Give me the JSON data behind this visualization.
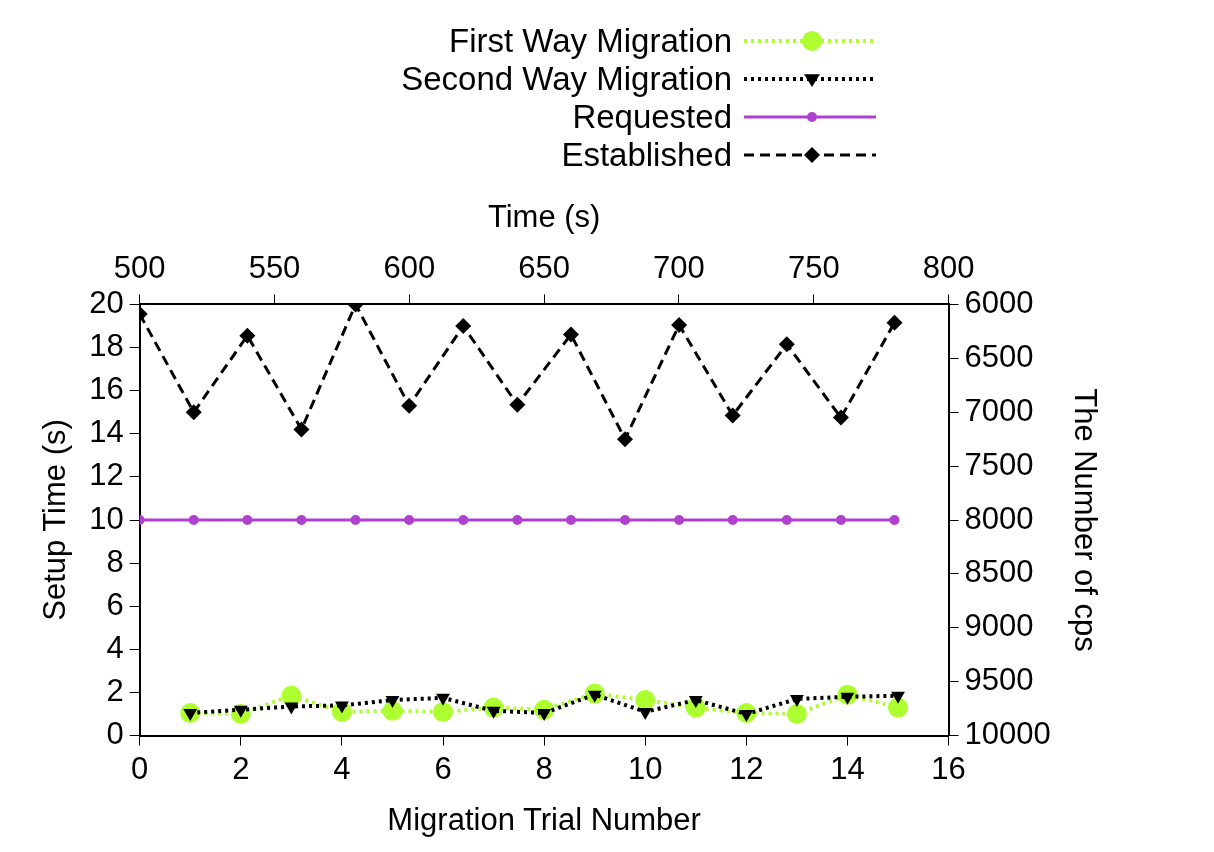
{
  "chart_data": {
    "type": "line",
    "xlabel": "Migration Trial Number",
    "x2label": "Time (s)",
    "ylabel": "Setup Time (s)",
    "y2label": "The Number of cps",
    "xlim": [
      0,
      16
    ],
    "xticks": [
      0,
      2,
      4,
      6,
      8,
      10,
      12,
      14,
      16
    ],
    "x2lim": [
      500,
      800
    ],
    "x2ticks": [
      500,
      550,
      600,
      650,
      700,
      750,
      800
    ],
    "ylim": [
      0,
      20
    ],
    "yticks": [
      0,
      2,
      4,
      6,
      8,
      10,
      12,
      14,
      16,
      18,
      20
    ],
    "y2lim": [
      10000,
      6000
    ],
    "y2ticks": [
      6000,
      6500,
      7000,
      7500,
      8000,
      8500,
      9000,
      9500,
      10000
    ],
    "legend": "top",
    "grid": false,
    "series": [
      {
        "name": "First Way Migration",
        "color": "#adff2f",
        "marker": "circle",
        "line_style": "dotted",
        "x": [
          1,
          2,
          3,
          4,
          5,
          6,
          7,
          8,
          9,
          10,
          11,
          12,
          13,
          14,
          15
        ],
        "values": [
          1.05,
          1.0,
          1.85,
          1.1,
          1.15,
          1.1,
          1.3,
          1.2,
          1.95,
          1.65,
          1.3,
          1.05,
          1.0,
          1.9,
          1.3
        ]
      },
      {
        "name": "Second Way Migration",
        "color": "#000000",
        "marker": "triangle",
        "line_style": "dotted",
        "x": [
          1,
          2,
          3,
          4,
          5,
          6,
          7,
          8,
          9,
          10,
          11,
          12,
          13,
          14,
          15
        ],
        "values": [
          1.05,
          1.2,
          1.35,
          1.4,
          1.65,
          1.75,
          1.15,
          1.05,
          1.9,
          1.1,
          1.65,
          1.0,
          1.7,
          1.8,
          1.85
        ]
      },
      {
        "name": "Requested",
        "color": "#b040d0",
        "marker": "circle",
        "line_style": "solid",
        "axis": "y2",
        "x": [
          0,
          1.07,
          2.13,
          3.2,
          4.27,
          5.33,
          6.4,
          7.47,
          8.53,
          9.6,
          10.67,
          11.73,
          12.8,
          13.87,
          14.93
        ],
        "values": [
          8000,
          8000,
          8000,
          8000,
          8000,
          8000,
          8000,
          8000,
          8000,
          8000,
          8000,
          8000,
          8000,
          8000,
          8000
        ]
      },
      {
        "name": "Established",
        "color": "#000000",
        "marker": "diamond",
        "line_style": "dashed",
        "axis": "y2",
        "x": [
          0,
          1.07,
          2.13,
          3.2,
          4.27,
          5.33,
          6.4,
          7.47,
          8.53,
          9.6,
          10.67,
          11.73,
          12.8,
          13.87,
          14.93
        ],
        "values": [
          6090,
          7000,
          6290,
          7160,
          6000,
          6940,
          6200,
          6930,
          6280,
          7250,
          6190,
          7030,
          6370,
          7050,
          6170
        ]
      }
    ]
  }
}
